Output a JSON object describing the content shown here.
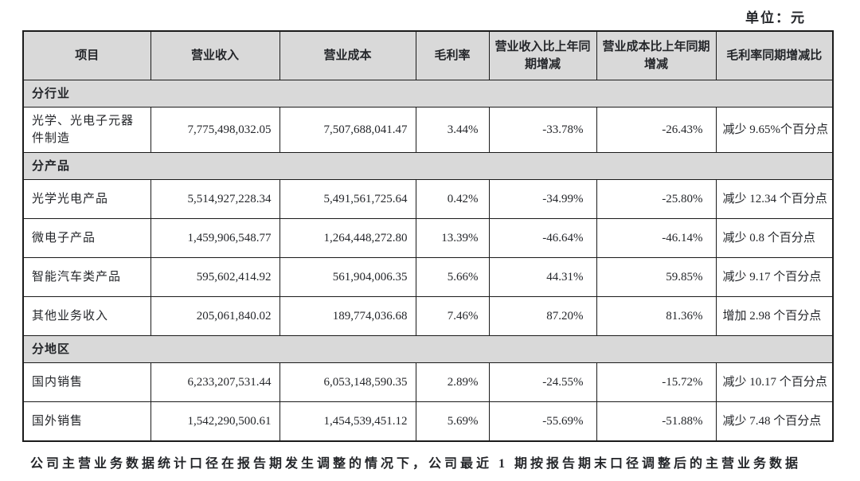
{
  "page": {
    "unit_label": "单位：元"
  },
  "colors": {
    "section_background": "#d9d9d9",
    "border": "#1b1b1b",
    "text": "#24262a"
  },
  "table": {
    "columns": [
      {
        "key": "item",
        "label": "项目"
      },
      {
        "key": "revenue",
        "label": "营业收入"
      },
      {
        "key": "cost",
        "label": "营业成本"
      },
      {
        "key": "margin",
        "label": "毛利率"
      },
      {
        "key": "revenue_yoy",
        "label": "营业收入比上年同期增减"
      },
      {
        "key": "cost_yoy",
        "label": "营业成本比上年同期增减"
      },
      {
        "key": "margin_yoy",
        "label": "毛利率同期增减比"
      }
    ],
    "sections": [
      {
        "label": "分行业",
        "rows": [
          {
            "item": "光学、光电子元器件制造",
            "revenue": "7,775,498,032.05",
            "cost": "7,507,688,041.47",
            "margin": "3.44%",
            "revenue_yoy": "-33.78%",
            "cost_yoy": "-26.43%",
            "margin_yoy": "减少 9.65%个百分点"
          }
        ]
      },
      {
        "label": "分产品",
        "rows": [
          {
            "item": "光学光电产品",
            "revenue": "5,514,927,228.34",
            "cost": "5,491,561,725.64",
            "margin": "0.42%",
            "revenue_yoy": "-34.99%",
            "cost_yoy": "-25.80%",
            "margin_yoy": "减少 12.34 个百分点"
          },
          {
            "item": "微电子产品",
            "revenue": "1,459,906,548.77",
            "cost": "1,264,448,272.80",
            "margin": "13.39%",
            "revenue_yoy": "-46.64%",
            "cost_yoy": "-46.14%",
            "margin_yoy": "减少 0.8 个百分点"
          },
          {
            "item": "智能汽车类产品",
            "revenue": "595,602,414.92",
            "cost": "561,904,006.35",
            "margin": "5.66%",
            "revenue_yoy": "44.31%",
            "cost_yoy": "59.85%",
            "margin_yoy": "减少 9.17 个百分点"
          },
          {
            "item": "其他业务收入",
            "revenue": "205,061,840.02",
            "cost": "189,774,036.68",
            "margin": "7.46%",
            "revenue_yoy": "87.20%",
            "cost_yoy": "81.36%",
            "margin_yoy": "增加 2.98 个百分点"
          }
        ]
      },
      {
        "label": "分地区",
        "rows": [
          {
            "item": "国内销售",
            "revenue": "6,233,207,531.44",
            "cost": "6,053,148,590.35",
            "margin": "2.89%",
            "revenue_yoy": "-24.55%",
            "cost_yoy": "-15.72%",
            "margin_yoy": "减少 10.17 个百分点"
          },
          {
            "item": "国外销售",
            "revenue": "1,542,290,500.61",
            "cost": "1,454,539,451.12",
            "margin": "5.69%",
            "revenue_yoy": "-55.69%",
            "cost_yoy": "-51.88%",
            "margin_yoy": "减少 7.48 个百分点"
          }
        ]
      }
    ],
    "footnote": "公司主营业务数据统计口径在报告期发生调整的情况下，公司最近 1 期按报告期末口径调整后的主营业务数据"
  }
}
